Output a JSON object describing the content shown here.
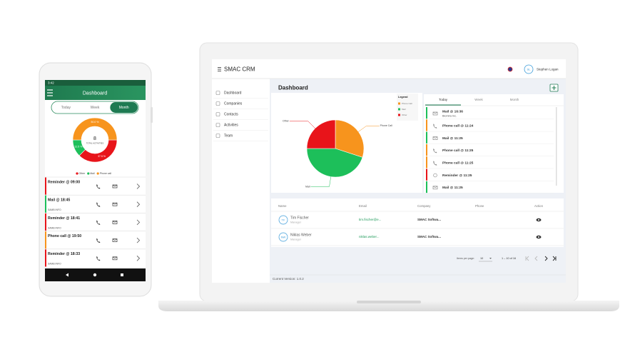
{
  "phone": {
    "time": "3:42",
    "title": "Dashboard",
    "tabs": [
      "Today",
      "Week",
      "Month"
    ],
    "active_tab": 2,
    "chart": {
      "type": "donut",
      "total": "8",
      "total_label": "TOTAL ACTIVITIES",
      "categories": [
        "Other",
        "Mail",
        "Phone call"
      ],
      "values": [
        37.5,
        12.5,
        50
      ],
      "value_labels": [
        "37.5 %",
        "12.5 %",
        "50.0 %"
      ],
      "colors": [
        "#e8141a",
        "#1dbf5a",
        "#f7941d"
      ]
    },
    "activities": [
      {
        "title": "Reminder @ 09:00",
        "color": "#e8141a"
      },
      {
        "title": "Mail @ 18:45",
        "subtitle": "SAMB INFO",
        "color": "#1dbf5a"
      },
      {
        "title": "Reminder @ 18:41",
        "subtitle": "SAMB INFO",
        "color": "#e8141a"
      },
      {
        "title": "Phone call @ 19:50",
        "color": "#f7941d"
      },
      {
        "title": "Reminder @ 18:33",
        "subtitle": "SAMB INFO",
        "color": "#e8141a"
      }
    ]
  },
  "laptop": {
    "app_name": "SMAC CRM",
    "user_initials": "SL",
    "user_name": "Stephen Logan",
    "nav": [
      "Dashboard",
      "Companies",
      "Contacts",
      "Activities",
      "Team"
    ],
    "page_title": "Dashboard",
    "chart": {
      "type": "pie",
      "legend_title": "Legend",
      "categories": [
        "Phone Call",
        "Mail",
        "Other"
      ],
      "values": [
        30,
        45,
        25
      ],
      "colors": [
        "#f7941d",
        "#1dbf5a",
        "#e8141a"
      ]
    },
    "tabs": [
      "Today",
      "Week",
      "Month"
    ],
    "active_tab": 0,
    "activities": [
      {
        "title": "Mail @ 16:36",
        "subtitle": "Biomira Inc.",
        "color": "#1dbf5a"
      },
      {
        "title": "Phone call @ 11:24",
        "color": "#f7941d"
      },
      {
        "title": "Mail @ 11:25",
        "color": "#1dbf5a"
      },
      {
        "title": "Phone call @ 11:25",
        "color": "#f7941d"
      },
      {
        "title": "Phone call @ 11:25",
        "color": "#f7941d"
      },
      {
        "title": "Reminder @ 11:25",
        "color": "#e8141a"
      },
      {
        "title": "Mail @ 11:25",
        "color": "#1dbf5a"
      }
    ],
    "table": {
      "columns": [
        "Name",
        "Email",
        "Company",
        "Phone",
        "Action"
      ],
      "rows": [
        {
          "initials": "TF",
          "name": "Tim Fischer",
          "role": "Manager",
          "email": "tim.fischer@e...",
          "company": "SMAC Softwa..."
        },
        {
          "initials": "NW",
          "name": "Niklas Weber",
          "role": "Manager",
          "email": "niklas.weber...",
          "company": "SMAC Softwa..."
        }
      ]
    },
    "paginator": {
      "label": "Items per page:",
      "page_size": "10",
      "range": "1 – 10 of 16"
    },
    "footer": "Current Version: 1.0.2"
  }
}
